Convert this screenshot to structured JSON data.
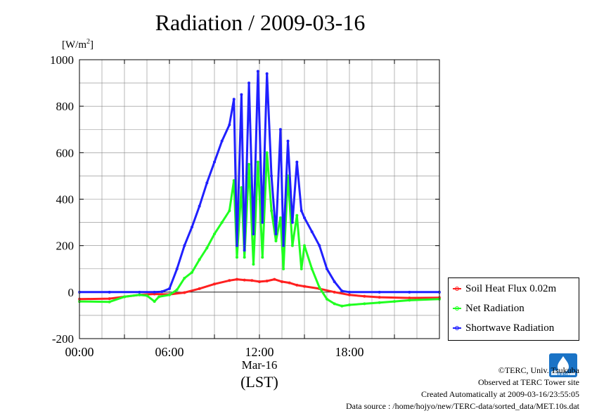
{
  "title": "Radiation / 2009-03-16",
  "unit_label": {
    "base": "[W/m",
    "sup": "2",
    "close": "]"
  },
  "date_label": "Mar-16",
  "timezone_label": "(LST)",
  "credits": {
    "copyright": "©TERC, Univ. Tsukuba",
    "site": "Observed at TERC Tower site",
    "created": "Created Automatically at 2009-03-16/23:55:05",
    "source": "Data source : /home/hojyo/new/TERC-data/sorted_data/MET.10s.dat"
  },
  "logo_text": "TERC",
  "colors": {
    "soil": "#ff2020",
    "net": "#20ff20",
    "shortwave": "#2020ff",
    "grid": "#888888"
  },
  "chart_data": {
    "type": "line",
    "title": "Radiation / 2009-03-16",
    "xlabel": "Mar-16 (LST)",
    "ylabel": "[W/m2]",
    "xlim": [
      0,
      24
    ],
    "ylim": [
      -200,
      1000
    ],
    "x_ticks": [
      0,
      6,
      12,
      18
    ],
    "x_tick_labels": [
      "00:00",
      "06:00",
      "12:00",
      "18:00"
    ],
    "y_ticks": [
      -200,
      0,
      200,
      400,
      600,
      800,
      1000
    ],
    "y_tick_labels": [
      "-200",
      "0",
      "200",
      "400",
      "600",
      "800",
      "1000"
    ],
    "grid": true,
    "legend_position": "bottom-right outside",
    "x_units": "hour",
    "series": [
      {
        "name": "Soil Heat Flux 0.02m",
        "color": "#ff2020",
        "points": [
          [
            0,
            -30
          ],
          [
            2,
            -28
          ],
          [
            3,
            -20
          ],
          [
            4,
            -12
          ],
          [
            5,
            -8
          ],
          [
            6,
            -10
          ],
          [
            7,
            -2
          ],
          [
            8,
            15
          ],
          [
            9,
            35
          ],
          [
            10,
            50
          ],
          [
            10.5,
            55
          ],
          [
            11,
            52
          ],
          [
            11.5,
            50
          ],
          [
            12,
            45
          ],
          [
            12.5,
            48
          ],
          [
            13,
            55
          ],
          [
            13.5,
            45
          ],
          [
            14,
            40
          ],
          [
            14.5,
            30
          ],
          [
            15,
            25
          ],
          [
            16,
            15
          ],
          [
            17,
            0
          ],
          [
            18,
            -12
          ],
          [
            19,
            -18
          ],
          [
            20,
            -22
          ],
          [
            22,
            -25
          ],
          [
            24,
            -24
          ]
        ]
      },
      {
        "name": "Net Radiation",
        "color": "#20ff20",
        "points": [
          [
            0,
            -40
          ],
          [
            2,
            -42
          ],
          [
            3,
            -20
          ],
          [
            4,
            -12
          ],
          [
            4.5,
            -15
          ],
          [
            5,
            -40
          ],
          [
            5.3,
            -20
          ],
          [
            6,
            -12
          ],
          [
            6.5,
            10
          ],
          [
            7,
            60
          ],
          [
            7.5,
            85
          ],
          [
            8,
            140
          ],
          [
            8.5,
            190
          ],
          [
            9,
            250
          ],
          [
            9.5,
            300
          ],
          [
            10,
            350
          ],
          [
            10.3,
            480
          ],
          [
            10.5,
            150
          ],
          [
            10.8,
            450
          ],
          [
            11,
            150
          ],
          [
            11.3,
            550
          ],
          [
            11.6,
            120
          ],
          [
            11.9,
            560
          ],
          [
            12.2,
            150
          ],
          [
            12.5,
            600
          ],
          [
            12.8,
            350
          ],
          [
            13.1,
            220
          ],
          [
            13.4,
            320
          ],
          [
            13.6,
            100
          ],
          [
            13.9,
            500
          ],
          [
            14.2,
            200
          ],
          [
            14.5,
            330
          ],
          [
            14.8,
            100
          ],
          [
            15,
            200
          ],
          [
            15.5,
            100
          ],
          [
            16,
            20
          ],
          [
            16.5,
            -30
          ],
          [
            17,
            -50
          ],
          [
            17.5,
            -60
          ],
          [
            18,
            -55
          ],
          [
            19,
            -50
          ],
          [
            20,
            -45
          ],
          [
            21,
            -40
          ],
          [
            22,
            -35
          ],
          [
            24,
            -30
          ]
        ]
      },
      {
        "name": "Shortwave Radiation",
        "color": "#2020ff",
        "points": [
          [
            0,
            0
          ],
          [
            2,
            0
          ],
          [
            4,
            0
          ],
          [
            5,
            0
          ],
          [
            5.5,
            2
          ],
          [
            6,
            15
          ],
          [
            6.5,
            100
          ],
          [
            7,
            200
          ],
          [
            7.5,
            280
          ],
          [
            8,
            370
          ],
          [
            8.5,
            470
          ],
          [
            9,
            560
          ],
          [
            9.5,
            650
          ],
          [
            10,
            720
          ],
          [
            10.3,
            830
          ],
          [
            10.5,
            200
          ],
          [
            10.8,
            850
          ],
          [
            11,
            180
          ],
          [
            11.3,
            900
          ],
          [
            11.6,
            250
          ],
          [
            11.9,
            950
          ],
          [
            12.2,
            300
          ],
          [
            12.5,
            940
          ],
          [
            12.8,
            500
          ],
          [
            13.1,
            250
          ],
          [
            13.4,
            700
          ],
          [
            13.6,
            200
          ],
          [
            13.9,
            650
          ],
          [
            14.2,
            300
          ],
          [
            14.5,
            560
          ],
          [
            14.8,
            350
          ],
          [
            15,
            320
          ],
          [
            15.5,
            260
          ],
          [
            16,
            200
          ],
          [
            16.5,
            100
          ],
          [
            17,
            45
          ],
          [
            17.5,
            5
          ],
          [
            18,
            0
          ],
          [
            20,
            0
          ],
          [
            22,
            0
          ],
          [
            24,
            0
          ]
        ]
      }
    ]
  }
}
